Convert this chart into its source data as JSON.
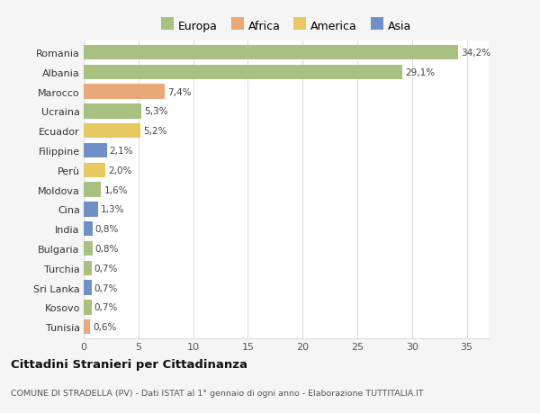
{
  "countries": [
    "Romania",
    "Albania",
    "Marocco",
    "Ucraina",
    "Ecuador",
    "Filippine",
    "Perù",
    "Moldova",
    "Cina",
    "India",
    "Bulgaria",
    "Turchia",
    "Sri Lanka",
    "Kosovo",
    "Tunisia"
  ],
  "values": [
    34.2,
    29.1,
    7.4,
    5.3,
    5.2,
    2.1,
    2.0,
    1.6,
    1.3,
    0.8,
    0.8,
    0.7,
    0.7,
    0.7,
    0.6
  ],
  "labels": [
    "34,2%",
    "29,1%",
    "7,4%",
    "5,3%",
    "5,2%",
    "2,1%",
    "2,0%",
    "1,6%",
    "1,3%",
    "0,8%",
    "0,8%",
    "0,7%",
    "0,7%",
    "0,7%",
    "0,6%"
  ],
  "colors": [
    "#a8c080",
    "#a8c080",
    "#e8a878",
    "#a8c080",
    "#e8c860",
    "#7090c8",
    "#e8c860",
    "#a8c080",
    "#7090c8",
    "#7090c8",
    "#a8c080",
    "#a8c080",
    "#7090c8",
    "#a8c080",
    "#e8a878"
  ],
  "legend_labels": [
    "Europa",
    "Africa",
    "America",
    "Asia"
  ],
  "legend_colors": [
    "#a8c080",
    "#e8a878",
    "#e8c860",
    "#7090c8"
  ],
  "title": "Cittadini Stranieri per Cittadinanza",
  "subtitle": "COMUNE DI STRADELLA (PV) - Dati ISTAT al 1° gennaio di ogni anno - Elaborazione TUTTITALIA.IT",
  "xlim": [
    0,
    37
  ],
  "xticks": [
    0,
    5,
    10,
    15,
    20,
    25,
    30,
    35
  ],
  "background_color": "#f5f5f5",
  "plot_background": "#ffffff",
  "grid_color": "#dddddd",
  "bar_height": 0.75
}
